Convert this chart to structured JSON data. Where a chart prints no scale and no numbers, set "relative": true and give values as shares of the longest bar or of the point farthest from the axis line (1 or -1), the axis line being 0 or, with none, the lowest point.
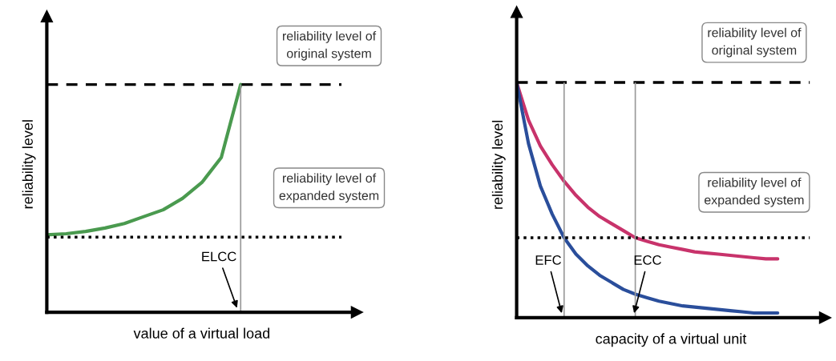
{
  "chart_data": [
    {
      "type": "line",
      "relative": true,
      "xlabel": "value of a virtual load",
      "ylabel": "reliability level",
      "categories": [
        null,
        null,
        null,
        null,
        null,
        null,
        null,
        null,
        null,
        null,
        null,
        null,
        null,
        null,
        null,
        null,
        null
      ],
      "series": [
        {
          "color": "#4a9a4f",
          "values": [
            0.34,
            0.345,
            0.355,
            0.37,
            0.39,
            0.42,
            0.45,
            0.5,
            0.57,
            0.68,
            1,
            null,
            null,
            null,
            null,
            null,
            null
          ]
        }
      ],
      "ref_lines": [
        {
          "axis": "y",
          "value": 1,
          "line_style": "dashed",
          "color": "#000000"
        },
        {
          "axis": "y",
          "value": 0.33,
          "line_style": "dotted",
          "color": "#000000"
        }
      ],
      "annotations": [
        "reliability level of\noriginal system",
        "reliability level of\nexpanded system",
        "ELCC"
      ]
    },
    {
      "type": "line",
      "relative": true,
      "xlabel": "capacity of a virtual unit",
      "ylabel": "reliability level",
      "categories": [
        null,
        null,
        null,
        null,
        null,
        null,
        null,
        null,
        null,
        null,
        null,
        null,
        null,
        null,
        null,
        null,
        null,
        null,
        null,
        null,
        null,
        null,
        null,
        null,
        null,
        null,
        null
      ],
      "series": [
        {
          "color": "#c8336b",
          "values": [
            1,
            0.84,
            0.73,
            0.65,
            0.58,
            0.52,
            0.47,
            0.43,
            0.4,
            0.37,
            0.34,
            0.325,
            0.31,
            0.3,
            0.29,
            0.28,
            0.275,
            0.27,
            0.265,
            0.26,
            0.255,
            0.25,
            0.25,
            null,
            null,
            null,
            null
          ]
        },
        {
          "color": "#2a4e9b",
          "values": [
            1,
            0.74,
            0.56,
            0.44,
            0.34,
            0.27,
            0.22,
            0.18,
            0.15,
            0.12,
            0.1,
            0.085,
            0.07,
            0.06,
            0.05,
            0.045,
            0.04,
            0.035,
            0.03,
            0.025,
            0.02,
            0.02,
            0.02,
            null,
            null,
            null,
            null
          ]
        }
      ],
      "ref_lines": [
        {
          "axis": "y",
          "value": 1,
          "line_style": "dashed",
          "color": "#000000"
        },
        {
          "axis": "y",
          "value": 0.34,
          "line_style": "dotted",
          "color": "#000000"
        }
      ],
      "annotations": [
        "reliability level of\noriginal system",
        "reliability level of\nexpanded system",
        "EFC",
        "ECC"
      ]
    }
  ]
}
